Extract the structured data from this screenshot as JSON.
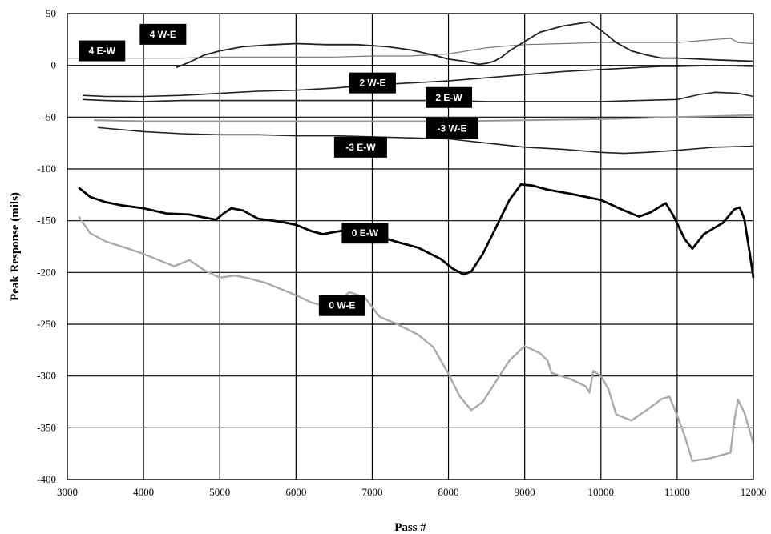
{
  "chart_data": {
    "type": "line",
    "title": "",
    "xlabel": "Pass #",
    "ylabel": "Peak Response (mils)",
    "xlim": [
      3000,
      12000
    ],
    "ylim": [
      -400,
      50
    ],
    "xticks": [
      3000,
      4000,
      5000,
      6000,
      7000,
      8000,
      9000,
      10000,
      11000,
      12000
    ],
    "yticks": [
      50,
      0,
      -50,
      -100,
      -150,
      -200,
      -250,
      -300,
      -350,
      -400
    ],
    "grid": true,
    "legend": "inline labels",
    "series": [
      {
        "name": "4 W-E",
        "color": "#777777",
        "width": 1.2,
        "points": [
          [
            3000,
            7
          ],
          [
            3500,
            7
          ],
          [
            4000,
            7
          ],
          [
            4500,
            7
          ],
          [
            5000,
            8
          ],
          [
            5500,
            8
          ],
          [
            6000,
            8
          ],
          [
            6500,
            8
          ],
          [
            7000,
            9
          ],
          [
            7500,
            9
          ],
          [
            8000,
            11
          ],
          [
            8500,
            17
          ],
          [
            8800,
            19
          ],
          [
            9000,
            20
          ],
          [
            9500,
            21
          ],
          [
            10000,
            22
          ],
          [
            10500,
            22
          ],
          [
            11000,
            22
          ],
          [
            11500,
            25
          ],
          [
            11700,
            26
          ],
          [
            11800,
            22
          ],
          [
            12000,
            21
          ]
        ]
      },
      {
        "name": "4 E-W",
        "color": "#222222",
        "width": 1.8,
        "points": [
          [
            4430,
            -2
          ],
          [
            4600,
            3
          ],
          [
            4800,
            10
          ],
          [
            5000,
            14
          ],
          [
            5300,
            18
          ],
          [
            5700,
            20
          ],
          [
            6000,
            21
          ],
          [
            6400,
            20
          ],
          [
            6800,
            20
          ],
          [
            7200,
            18
          ],
          [
            7500,
            15
          ],
          [
            7800,
            10
          ],
          [
            8000,
            6
          ],
          [
            8200,
            4
          ],
          [
            8400,
            1
          ],
          [
            8500,
            2
          ],
          [
            8600,
            4
          ],
          [
            8700,
            8
          ],
          [
            8800,
            14
          ],
          [
            9000,
            23
          ],
          [
            9200,
            32
          ],
          [
            9500,
            38
          ],
          [
            9850,
            42
          ],
          [
            10000,
            34
          ],
          [
            10200,
            22
          ],
          [
            10400,
            14
          ],
          [
            10600,
            10
          ],
          [
            10800,
            7
          ],
          [
            11000,
            7
          ],
          [
            11300,
            6
          ],
          [
            11600,
            5
          ],
          [
            12000,
            4
          ]
        ]
      },
      {
        "name": "2 W-E",
        "color": "#222222",
        "width": 1.6,
        "points": [
          [
            3200,
            -29
          ],
          [
            3500,
            -30
          ],
          [
            4000,
            -30
          ],
          [
            4500,
            -29
          ],
          [
            5000,
            -27
          ],
          [
            5500,
            -25
          ],
          [
            6000,
            -24
          ],
          [
            6500,
            -22
          ],
          [
            7000,
            -19
          ],
          [
            7500,
            -17
          ],
          [
            8000,
            -15
          ],
          [
            8500,
            -12
          ],
          [
            9000,
            -9
          ],
          [
            9500,
            -6
          ],
          [
            10000,
            -4
          ],
          [
            10500,
            -2
          ],
          [
            10800,
            -1
          ],
          [
            11000,
            -1
          ],
          [
            11500,
            0
          ],
          [
            12000,
            -1
          ]
        ]
      },
      {
        "name": "2 E-W",
        "color": "#222222",
        "width": 1.6,
        "points": [
          [
            3200,
            -33
          ],
          [
            3500,
            -34
          ],
          [
            4000,
            -35
          ],
          [
            4500,
            -34
          ],
          [
            5000,
            -34
          ],
          [
            5500,
            -34
          ],
          [
            6000,
            -34
          ],
          [
            6500,
            -34
          ],
          [
            7000,
            -34
          ],
          [
            7500,
            -34
          ],
          [
            8000,
            -34
          ],
          [
            8500,
            -35
          ],
          [
            9000,
            -35
          ],
          [
            9500,
            -35
          ],
          [
            10000,
            -35
          ],
          [
            10500,
            -34
          ],
          [
            11000,
            -33
          ],
          [
            11300,
            -28
          ],
          [
            11500,
            -26
          ],
          [
            11800,
            -27
          ],
          [
            12000,
            -30
          ]
        ]
      },
      {
        "name": "-3 W-E",
        "color": "#999999",
        "width": 2.0,
        "points": [
          [
            3350,
            -53
          ],
          [
            4000,
            -54
          ],
          [
            5000,
            -54
          ],
          [
            6000,
            -54
          ],
          [
            7000,
            -54
          ],
          [
            8000,
            -54
          ],
          [
            9000,
            -53
          ],
          [
            10000,
            -52
          ],
          [
            11000,
            -50
          ],
          [
            11500,
            -49
          ],
          [
            12000,
            -48
          ]
        ]
      },
      {
        "name": "-3 E-W",
        "color": "#222222",
        "width": 1.6,
        "points": [
          [
            3400,
            -60
          ],
          [
            4000,
            -64
          ],
          [
            4500,
            -66
          ],
          [
            5000,
            -67
          ],
          [
            5500,
            -67
          ],
          [
            6000,
            -68
          ],
          [
            6500,
            -68
          ],
          [
            7000,
            -69
          ],
          [
            7500,
            -70
          ],
          [
            8000,
            -71
          ],
          [
            8500,
            -75
          ],
          [
            9000,
            -79
          ],
          [
            9500,
            -81
          ],
          [
            10000,
            -84
          ],
          [
            10300,
            -85
          ],
          [
            10600,
            -84
          ],
          [
            11000,
            -82
          ],
          [
            11500,
            -79
          ],
          [
            12000,
            -78
          ]
        ]
      },
      {
        "name": "0 E-W",
        "color": "#000000",
        "width": 2.8,
        "points": [
          [
            3150,
            -118
          ],
          [
            3300,
            -127
          ],
          [
            3500,
            -132
          ],
          [
            3700,
            -135
          ],
          [
            4000,
            -138
          ],
          [
            4300,
            -143
          ],
          [
            4600,
            -144
          ],
          [
            4800,
            -147
          ],
          [
            4950,
            -149
          ],
          [
            5050,
            -143
          ],
          [
            5150,
            -138
          ],
          [
            5300,
            -140
          ],
          [
            5500,
            -148
          ],
          [
            5800,
            -151
          ],
          [
            6000,
            -154
          ],
          [
            6200,
            -160
          ],
          [
            6350,
            -163
          ],
          [
            6500,
            -161
          ],
          [
            6750,
            -158
          ],
          [
            7000,
            -163
          ],
          [
            7300,
            -170
          ],
          [
            7600,
            -176
          ],
          [
            7900,
            -187
          ],
          [
            8050,
            -196
          ],
          [
            8200,
            -202
          ],
          [
            8300,
            -199
          ],
          [
            8450,
            -182
          ],
          [
            8600,
            -160
          ],
          [
            8800,
            -130
          ],
          [
            8950,
            -115
          ],
          [
            9100,
            -116
          ],
          [
            9300,
            -120
          ],
          [
            9600,
            -124
          ],
          [
            9800,
            -127
          ],
          [
            10000,
            -130
          ],
          [
            10300,
            -140
          ],
          [
            10500,
            -146
          ],
          [
            10650,
            -142
          ],
          [
            10850,
            -133
          ],
          [
            10950,
            -145
          ],
          [
            11100,
            -168
          ],
          [
            11200,
            -177
          ],
          [
            11350,
            -163
          ],
          [
            11600,
            -152
          ],
          [
            11750,
            -139
          ],
          [
            11820,
            -137
          ],
          [
            11880,
            -148
          ],
          [
            11950,
            -180
          ],
          [
            12000,
            -205
          ]
        ]
      },
      {
        "name": "0 W-E",
        "color": "#aaaaaa",
        "width": 2.4,
        "points": [
          [
            3150,
            -146
          ],
          [
            3300,
            -162
          ],
          [
            3500,
            -170
          ],
          [
            3800,
            -177
          ],
          [
            4000,
            -182
          ],
          [
            4200,
            -188
          ],
          [
            4400,
            -194
          ],
          [
            4600,
            -188
          ],
          [
            4800,
            -198
          ],
          [
            5000,
            -205
          ],
          [
            5200,
            -203
          ],
          [
            5400,
            -206
          ],
          [
            5600,
            -210
          ],
          [
            5800,
            -216
          ],
          [
            6000,
            -222
          ],
          [
            6200,
            -229
          ],
          [
            6400,
            -233
          ],
          [
            6550,
            -228
          ],
          [
            6700,
            -219
          ],
          [
            6900,
            -224
          ],
          [
            7100,
            -243
          ],
          [
            7300,
            -249
          ],
          [
            7600,
            -260
          ],
          [
            7800,
            -272
          ],
          [
            8000,
            -298
          ],
          [
            8150,
            -320
          ],
          [
            8300,
            -333
          ],
          [
            8450,
            -325
          ],
          [
            8600,
            -308
          ],
          [
            8800,
            -285
          ],
          [
            9000,
            -271
          ],
          [
            9200,
            -278
          ],
          [
            9300,
            -285
          ],
          [
            9350,
            -297
          ],
          [
            9600,
            -303
          ],
          [
            9800,
            -310
          ],
          [
            9850,
            -316
          ],
          [
            9900,
            -295
          ],
          [
            10000,
            -300
          ],
          [
            10100,
            -313
          ],
          [
            10200,
            -337
          ],
          [
            10400,
            -343
          ],
          [
            10600,
            -333
          ],
          [
            10800,
            -322
          ],
          [
            10900,
            -320
          ],
          [
            11000,
            -338
          ],
          [
            11100,
            -358
          ],
          [
            11200,
            -382
          ],
          [
            11400,
            -380
          ],
          [
            11700,
            -374
          ],
          [
            11750,
            -343
          ],
          [
            11800,
            -323
          ],
          [
            11880,
            -335
          ],
          [
            12000,
            -365
          ]
        ]
      }
    ],
    "labels": [
      {
        "text": "4 W-E",
        "x": 3950,
        "y": 30
      },
      {
        "text": "4 E-W",
        "x": 3150,
        "y": 14
      },
      {
        "text": "2 W-E",
        "x": 6700,
        "y": -17
      },
      {
        "text": "2 E-W",
        "x": 7700,
        "y": -31
      },
      {
        "text": "-3 W-E",
        "x": 7700,
        "y": -61
      },
      {
        "text": "-3 E-W",
        "x": 6500,
        "y": -79
      },
      {
        "text": "0 E-W",
        "x": 6600,
        "y": -162
      },
      {
        "text": "0 W-E",
        "x": 6300,
        "y": -232
      }
    ]
  }
}
